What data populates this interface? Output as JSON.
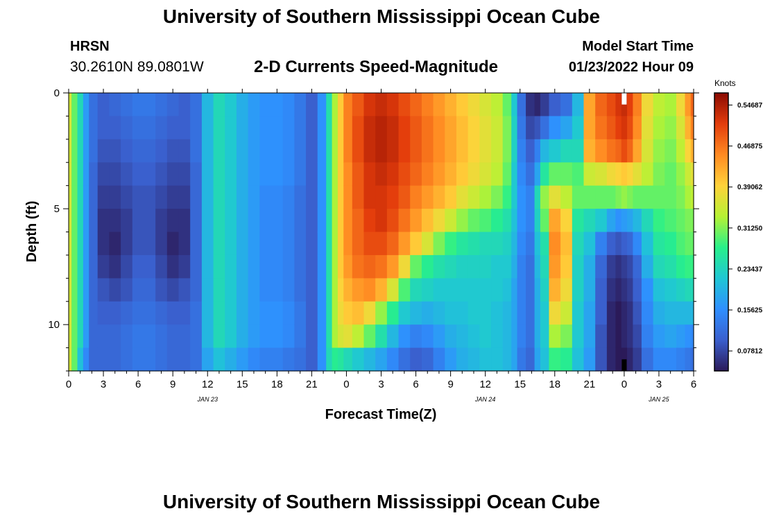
{
  "header": {
    "title": "University of Southern Mississippi Ocean Cube",
    "station": "HRSN",
    "coordinates": "30.2610N  89.0801W",
    "subtitle": "2-D Currents Speed-Magnitude",
    "model_start_label": "Model Start Time",
    "model_start_value": "01/23/2022 Hour 09"
  },
  "footer": {
    "title": "University of Southern Mississippi Ocean Cube"
  },
  "colors": {
    "colormap": [
      "#2b1a59",
      "#3a5fcd",
      "#2f8fff",
      "#1fc7d4",
      "#28f08a",
      "#b7f234",
      "#ffd23a",
      "#ff8a22",
      "#e33d0c",
      "#8a0a02"
    ]
  },
  "chart_data": {
    "type": "heatmap",
    "title": "2-D Currents Speed-Magnitude",
    "xlabel": "Forecast Time(Z)",
    "ylabel": "Depth (ft)",
    "x_unit": "hours since 00Z Jan 23",
    "xlim": [
      0,
      54
    ],
    "ylim": [
      0,
      12
    ],
    "x_ticks": [
      0,
      3,
      6,
      9,
      12,
      15,
      18,
      21,
      24,
      27,
      30,
      33,
      36,
      39,
      42,
      45,
      48,
      51,
      54
    ],
    "x_tick_labels": [
      "0",
      "3",
      "6",
      "9",
      "12",
      "15",
      "18",
      "21",
      "0",
      "3",
      "6",
      "9",
      "12",
      "15",
      "18",
      "21",
      "0",
      "3",
      "6"
    ],
    "y_ticks": [
      0,
      5,
      10
    ],
    "y_tick_labels": [
      "0",
      "5",
      "10"
    ],
    "date_labels": [
      {
        "x": 12,
        "label": "JAN 23"
      },
      {
        "x": 36,
        "label": "JAN 24"
      },
      {
        "x": 51,
        "label": "JAN 25"
      }
    ],
    "colorbar": {
      "label": "Knots",
      "min": 0.04,
      "max": 0.57,
      "tick_values": [
        0.54687,
        0.46875,
        0.39062,
        0.3125,
        0.23437,
        0.15625,
        0.07812
      ],
      "tick_labels": [
        "0.54687",
        "0.46875",
        "0.39062",
        "0.31250",
        "0.23437",
        "0.15625",
        "0.07812"
      ]
    },
    "depth_bins": [
      0,
      1,
      2,
      3,
      4,
      5,
      6,
      7,
      8,
      9,
      10,
      11,
      12
    ],
    "column_hours": [
      0,
      0.5,
      1,
      1.5,
      2,
      3,
      4,
      5,
      6,
      7,
      8,
      9,
      10,
      11,
      12,
      13,
      14,
      15,
      16,
      17,
      18,
      19,
      20,
      21,
      22,
      22.5,
      23,
      23.5,
      24,
      25,
      26,
      27,
      28,
      29,
      30,
      31,
      32,
      33,
      34,
      35,
      36,
      37,
      38,
      38.5,
      39,
      40,
      40.5,
      41,
      42,
      43,
      44,
      45,
      46,
      47,
      47.5,
      48,
      48.5,
      49,
      50,
      51,
      52,
      53,
      53.5,
      54
    ],
    "speed_knots": [
      [
        0.36,
        0.36,
        0.36,
        0.36,
        0.36,
        0.36,
        0.36,
        0.36,
        0.36,
        0.36,
        0.36,
        0.36
      ],
      [
        0.3,
        0.3,
        0.3,
        0.3,
        0.3,
        0.3,
        0.3,
        0.3,
        0.3,
        0.3,
        0.3,
        0.3
      ],
      [
        0.24,
        0.24,
        0.24,
        0.24,
        0.24,
        0.24,
        0.24,
        0.24,
        0.24,
        0.24,
        0.24,
        0.21
      ],
      [
        0.17,
        0.17,
        0.17,
        0.17,
        0.17,
        0.17,
        0.17,
        0.17,
        0.17,
        0.17,
        0.17,
        0.15
      ],
      [
        0.12,
        0.12,
        0.12,
        0.11,
        0.11,
        0.11,
        0.11,
        0.11,
        0.11,
        0.11,
        0.11,
        0.11
      ],
      [
        0.1,
        0.1,
        0.09,
        0.08,
        0.07,
        0.06,
        0.06,
        0.07,
        0.09,
        0.1,
        0.11,
        0.11
      ],
      [
        0.11,
        0.1,
        0.09,
        0.08,
        0.07,
        0.06,
        0.05,
        0.06,
        0.08,
        0.1,
        0.11,
        0.11
      ],
      [
        0.12,
        0.11,
        0.1,
        0.09,
        0.08,
        0.07,
        0.07,
        0.08,
        0.09,
        0.11,
        0.12,
        0.12
      ],
      [
        0.13,
        0.12,
        0.11,
        0.1,
        0.09,
        0.09,
        0.09,
        0.1,
        0.11,
        0.12,
        0.13,
        0.13
      ],
      [
        0.13,
        0.12,
        0.11,
        0.1,
        0.09,
        0.09,
        0.09,
        0.1,
        0.11,
        0.12,
        0.13,
        0.13
      ],
      [
        0.12,
        0.11,
        0.1,
        0.09,
        0.08,
        0.07,
        0.07,
        0.08,
        0.09,
        0.11,
        0.12,
        0.12
      ],
      [
        0.11,
        0.1,
        0.09,
        0.08,
        0.07,
        0.06,
        0.05,
        0.06,
        0.08,
        0.1,
        0.11,
        0.11
      ],
      [
        0.1,
        0.1,
        0.09,
        0.08,
        0.07,
        0.06,
        0.06,
        0.07,
        0.09,
        0.1,
        0.11,
        0.11
      ],
      [
        0.12,
        0.12,
        0.12,
        0.11,
        0.11,
        0.11,
        0.11,
        0.11,
        0.11,
        0.12,
        0.12,
        0.12
      ],
      [
        0.2,
        0.2,
        0.2,
        0.2,
        0.2,
        0.2,
        0.2,
        0.2,
        0.2,
        0.2,
        0.2,
        0.18
      ],
      [
        0.24,
        0.24,
        0.24,
        0.24,
        0.24,
        0.24,
        0.24,
        0.24,
        0.24,
        0.24,
        0.24,
        0.21
      ],
      [
        0.22,
        0.22,
        0.22,
        0.22,
        0.22,
        0.22,
        0.22,
        0.22,
        0.22,
        0.22,
        0.22,
        0.19
      ],
      [
        0.19,
        0.19,
        0.19,
        0.19,
        0.19,
        0.19,
        0.19,
        0.19,
        0.19,
        0.19,
        0.19,
        0.17
      ],
      [
        0.17,
        0.17,
        0.17,
        0.17,
        0.17,
        0.17,
        0.17,
        0.17,
        0.17,
        0.17,
        0.17,
        0.15
      ],
      [
        0.16,
        0.16,
        0.16,
        0.16,
        0.15,
        0.15,
        0.15,
        0.15,
        0.15,
        0.16,
        0.16,
        0.14
      ],
      [
        0.16,
        0.16,
        0.16,
        0.16,
        0.15,
        0.15,
        0.15,
        0.15,
        0.15,
        0.16,
        0.16,
        0.14
      ],
      [
        0.15,
        0.15,
        0.15,
        0.15,
        0.14,
        0.14,
        0.14,
        0.14,
        0.14,
        0.15,
        0.15,
        0.13
      ],
      [
        0.13,
        0.13,
        0.13,
        0.13,
        0.12,
        0.12,
        0.12,
        0.12,
        0.12,
        0.13,
        0.13,
        0.12
      ],
      [
        0.1,
        0.1,
        0.1,
        0.1,
        0.1,
        0.1,
        0.1,
        0.1,
        0.1,
        0.1,
        0.1,
        0.1
      ],
      [
        0.16,
        0.16,
        0.16,
        0.16,
        0.16,
        0.16,
        0.16,
        0.16,
        0.16,
        0.16,
        0.16,
        0.16
      ],
      [
        0.25,
        0.25,
        0.25,
        0.25,
        0.25,
        0.25,
        0.25,
        0.25,
        0.25,
        0.25,
        0.25,
        0.24
      ],
      [
        0.33,
        0.33,
        0.33,
        0.33,
        0.33,
        0.33,
        0.33,
        0.33,
        0.33,
        0.33,
        0.33,
        0.27
      ],
      [
        0.4,
        0.4,
        0.4,
        0.4,
        0.4,
        0.4,
        0.4,
        0.4,
        0.39,
        0.38,
        0.36,
        0.26
      ],
      [
        0.46,
        0.46,
        0.46,
        0.45,
        0.45,
        0.45,
        0.45,
        0.44,
        0.42,
        0.4,
        0.37,
        0.24
      ],
      [
        0.49,
        0.5,
        0.5,
        0.49,
        0.49,
        0.48,
        0.48,
        0.47,
        0.44,
        0.41,
        0.34,
        0.22
      ],
      [
        0.52,
        0.53,
        0.53,
        0.52,
        0.52,
        0.51,
        0.5,
        0.48,
        0.45,
        0.38,
        0.3,
        0.2
      ],
      [
        0.53,
        0.54,
        0.54,
        0.53,
        0.52,
        0.52,
        0.5,
        0.47,
        0.42,
        0.32,
        0.25,
        0.18
      ],
      [
        0.52,
        0.53,
        0.53,
        0.52,
        0.51,
        0.5,
        0.48,
        0.44,
        0.36,
        0.27,
        0.2,
        0.15
      ],
      [
        0.5,
        0.51,
        0.51,
        0.5,
        0.49,
        0.47,
        0.44,
        0.38,
        0.29,
        0.22,
        0.16,
        0.12
      ],
      [
        0.48,
        0.49,
        0.49,
        0.48,
        0.46,
        0.44,
        0.4,
        0.3,
        0.24,
        0.2,
        0.14,
        0.1
      ],
      [
        0.46,
        0.47,
        0.47,
        0.46,
        0.44,
        0.41,
        0.36,
        0.27,
        0.23,
        0.19,
        0.15,
        0.11
      ],
      [
        0.44,
        0.45,
        0.45,
        0.44,
        0.42,
        0.38,
        0.31,
        0.25,
        0.22,
        0.2,
        0.17,
        0.14
      ],
      [
        0.42,
        0.43,
        0.43,
        0.42,
        0.4,
        0.35,
        0.28,
        0.24,
        0.22,
        0.21,
        0.19,
        0.17
      ],
      [
        0.4,
        0.41,
        0.41,
        0.4,
        0.37,
        0.32,
        0.26,
        0.23,
        0.22,
        0.21,
        0.2,
        0.19
      ],
      [
        0.38,
        0.39,
        0.39,
        0.38,
        0.35,
        0.3,
        0.25,
        0.23,
        0.22,
        0.22,
        0.21,
        0.2
      ],
      [
        0.36,
        0.37,
        0.37,
        0.36,
        0.33,
        0.29,
        0.24,
        0.23,
        0.22,
        0.22,
        0.22,
        0.21
      ],
      [
        0.34,
        0.35,
        0.35,
        0.34,
        0.31,
        0.27,
        0.24,
        0.22,
        0.22,
        0.21,
        0.21,
        0.21
      ],
      [
        0.3,
        0.31,
        0.31,
        0.3,
        0.28,
        0.25,
        0.23,
        0.22,
        0.21,
        0.2,
        0.2,
        0.2
      ],
      [
        0.22,
        0.23,
        0.23,
        0.22,
        0.22,
        0.21,
        0.2,
        0.19,
        0.18,
        0.18,
        0.18,
        0.18
      ],
      [
        0.12,
        0.13,
        0.14,
        0.15,
        0.16,
        0.16,
        0.15,
        0.14,
        0.14,
        0.14,
        0.14,
        0.13
      ],
      [
        0.06,
        0.08,
        0.1,
        0.12,
        0.14,
        0.14,
        0.13,
        0.12,
        0.12,
        0.12,
        0.12,
        0.11
      ],
      [
        0.05,
        0.09,
        0.14,
        0.18,
        0.24,
        0.23,
        0.21,
        0.2,
        0.19,
        0.19,
        0.19,
        0.18
      ],
      [
        0.07,
        0.12,
        0.2,
        0.26,
        0.32,
        0.3,
        0.25,
        0.24,
        0.23,
        0.22,
        0.22,
        0.21
      ],
      [
        0.1,
        0.16,
        0.22,
        0.3,
        0.37,
        0.43,
        0.45,
        0.44,
        0.42,
        0.38,
        0.33,
        0.28
      ],
      [
        0.12,
        0.18,
        0.24,
        0.3,
        0.34,
        0.39,
        0.41,
        0.4,
        0.38,
        0.35,
        0.31,
        0.27
      ],
      [
        0.2,
        0.22,
        0.24,
        0.29,
        0.3,
        0.26,
        0.24,
        0.23,
        0.23,
        0.22,
        0.22,
        0.21
      ],
      [
        0.43,
        0.43,
        0.42,
        0.35,
        0.3,
        0.24,
        0.21,
        0.19,
        0.19,
        0.18,
        0.18,
        0.17
      ],
      [
        0.48,
        0.47,
        0.45,
        0.36,
        0.3,
        0.22,
        0.14,
        0.11,
        0.1,
        0.1,
        0.09,
        0.09
      ],
      [
        0.5,
        0.49,
        0.47,
        0.38,
        0.3,
        0.18,
        0.1,
        0.07,
        0.06,
        0.05,
        0.05,
        0.05
      ],
      [
        0.52,
        0.51,
        0.48,
        0.39,
        0.31,
        0.16,
        0.09,
        0.06,
        0.05,
        0.04,
        0.04,
        0.04
      ],
      [
        0.53,
        0.52,
        0.5,
        0.4,
        0.32,
        0.17,
        0.1,
        0.07,
        0.06,
        0.05,
        0.05,
        0.04
      ],
      [
        0.51,
        0.5,
        0.48,
        0.39,
        0.31,
        0.18,
        0.11,
        0.08,
        0.07,
        0.06,
        0.06,
        0.05
      ],
      [
        0.46,
        0.45,
        0.43,
        0.37,
        0.3,
        0.2,
        0.15,
        0.11,
        0.1,
        0.09,
        0.08,
        0.07
      ],
      [
        0.38,
        0.37,
        0.36,
        0.34,
        0.3,
        0.24,
        0.21,
        0.19,
        0.16,
        0.15,
        0.14,
        0.12
      ],
      [
        0.34,
        0.33,
        0.32,
        0.31,
        0.3,
        0.28,
        0.26,
        0.24,
        0.21,
        0.19,
        0.17,
        0.15
      ],
      [
        0.33,
        0.32,
        0.31,
        0.3,
        0.3,
        0.29,
        0.27,
        0.25,
        0.22,
        0.2,
        0.18,
        0.15
      ],
      [
        0.38,
        0.36,
        0.34,
        0.32,
        0.31,
        0.3,
        0.29,
        0.27,
        0.23,
        0.2,
        0.17,
        0.14
      ],
      [
        0.44,
        0.42,
        0.39,
        0.35,
        0.33,
        0.31,
        0.3,
        0.28,
        0.24,
        0.2,
        0.16,
        0.13
      ],
      [
        0.48,
        0.46,
        0.42,
        0.37,
        0.34,
        0.31,
        0.3,
        0.28,
        0.24,
        0.2,
        0.15,
        0.12
      ]
    ],
    "annotations": [
      {
        "type": "missing_data_marker",
        "hour": 48,
        "depth": 0,
        "color": "white"
      },
      {
        "type": "missing_data_marker",
        "hour": 48,
        "depth": 11.5,
        "color": "black"
      }
    ]
  }
}
